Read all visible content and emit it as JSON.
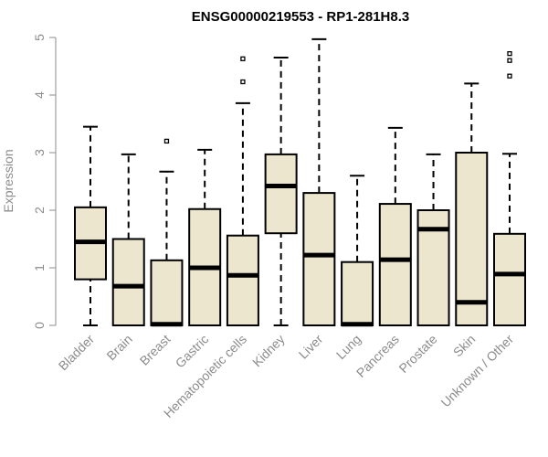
{
  "chart_data": {
    "type": "boxplot",
    "title": "ENSG00000219553 - RP1-281H8.3",
    "xlabel": "",
    "ylabel": "Expression",
    "ylim": [
      0,
      5
    ],
    "yticks": [
      0,
      1,
      2,
      3,
      4,
      5
    ],
    "box_color": "#ede6cf",
    "axis_color": "#8c8c8c",
    "categories": [
      "Bladder",
      "Brain",
      "Breast",
      "Gastric",
      "Hematopoietic cells",
      "Kidney",
      "Liver",
      "Lung",
      "Pancreas",
      "Prostate",
      "Skin",
      "Unknown / Other"
    ],
    "boxes": [
      {
        "min": 0.0,
        "q1": 0.8,
        "median": 1.45,
        "q3": 2.05,
        "max": 3.45,
        "outliers": []
      },
      {
        "min": 0.0,
        "q1": 0.0,
        "median": 0.68,
        "q3": 1.5,
        "max": 2.97,
        "outliers": []
      },
      {
        "min": 0.0,
        "q1": 0.0,
        "median": 0.02,
        "q3": 1.13,
        "max": 2.67,
        "outliers": [
          3.2
        ]
      },
      {
        "min": 0.0,
        "q1": 0.0,
        "median": 1.0,
        "q3": 2.02,
        "max": 3.05,
        "outliers": []
      },
      {
        "min": 0.0,
        "q1": 0.0,
        "median": 0.87,
        "q3": 1.56,
        "max": 3.86,
        "outliers": [
          4.23,
          4.63
        ]
      },
      {
        "min": 0.0,
        "q1": 1.6,
        "median": 2.42,
        "q3": 2.97,
        "max": 4.65,
        "outliers": []
      },
      {
        "min": 0.0,
        "q1": 0.0,
        "median": 1.22,
        "q3": 2.3,
        "max": 4.97,
        "outliers": []
      },
      {
        "min": 0.0,
        "q1": 0.0,
        "median": 0.02,
        "q3": 1.1,
        "max": 2.6,
        "outliers": []
      },
      {
        "min": 0.0,
        "q1": 0.0,
        "median": 1.14,
        "q3": 2.11,
        "max": 3.43,
        "outliers": []
      },
      {
        "min": 0.0,
        "q1": 0.0,
        "median": 1.67,
        "q3": 2.0,
        "max": 2.97,
        "outliers": []
      },
      {
        "min": 0.0,
        "q1": 0.0,
        "median": 0.4,
        "q3": 3.0,
        "max": 4.2,
        "outliers": []
      },
      {
        "min": 0.0,
        "q1": 0.0,
        "median": 0.89,
        "q3": 1.59,
        "max": 2.98,
        "outliers": [
          4.33,
          4.6,
          4.72
        ]
      }
    ]
  }
}
